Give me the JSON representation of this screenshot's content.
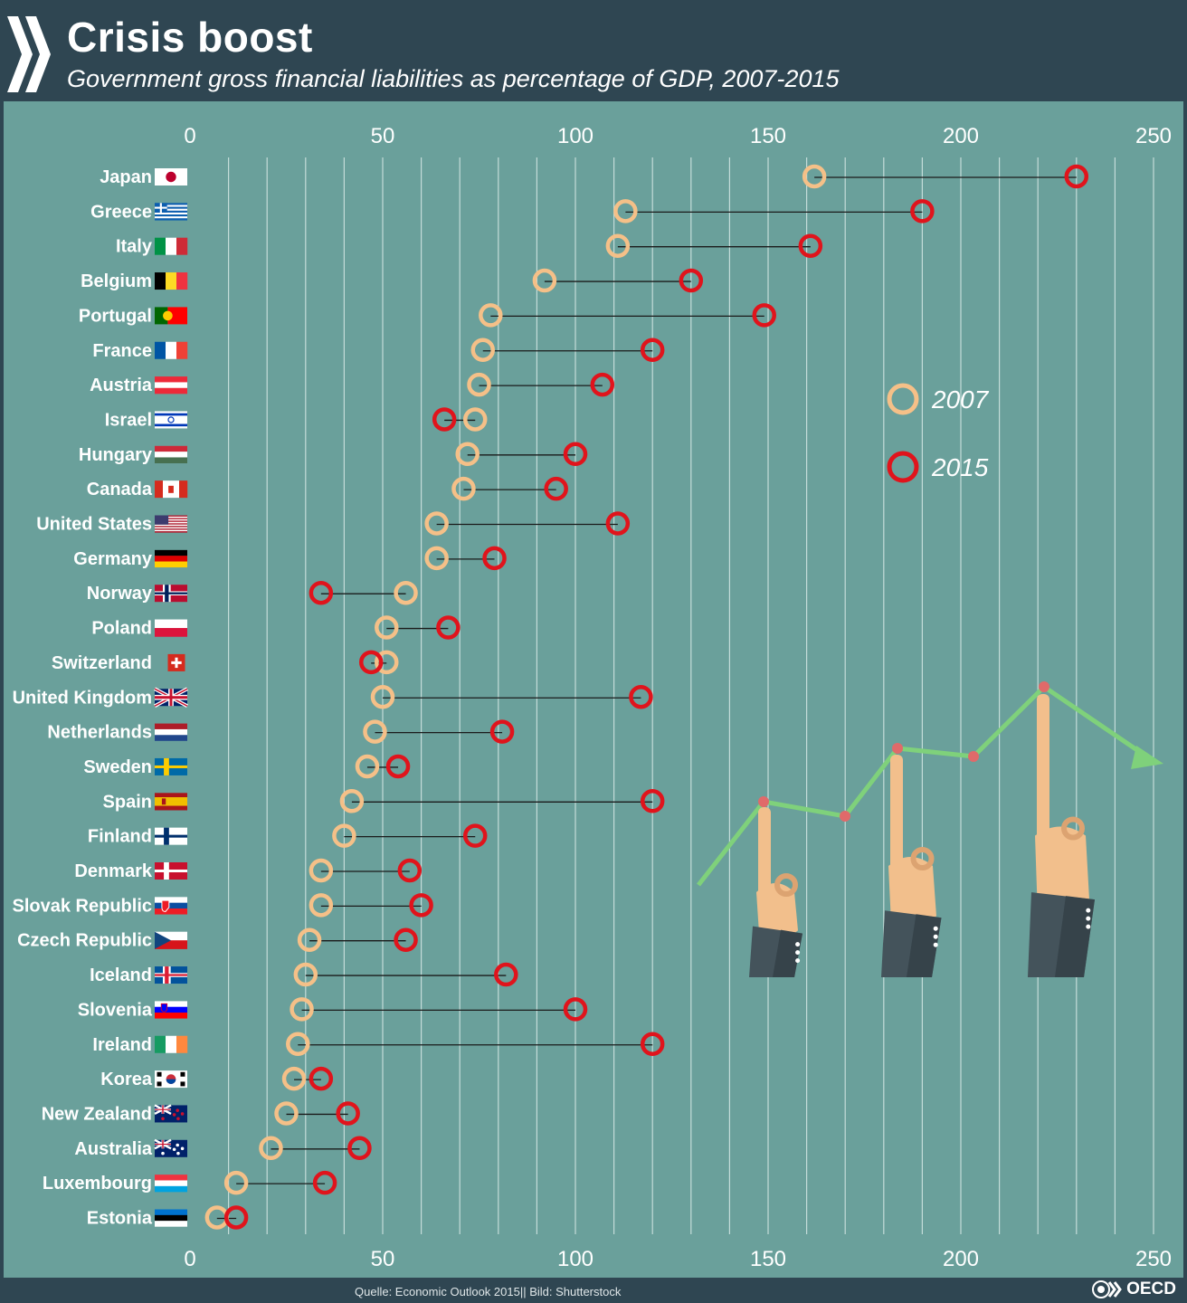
{
  "header": {
    "title": "Crisis boost",
    "subtitle": "Government gross financial liabilities as percentage of GDP, 2007-2015"
  },
  "footer": {
    "source": "Quelle: Economic Outlook 2015|| Bild: Shutterstock",
    "brand": "OECD"
  },
  "colors": {
    "background": "#6aa09b",
    "header": "#2f4652",
    "marker_2007": "#f5c088",
    "marker_2015": "#e0141c",
    "connector": "#1b1b1b",
    "illustration_line": "#7fd17b"
  },
  "chart_data": {
    "type": "dumbbell",
    "title": "Crisis boost",
    "subtitle": "Government gross financial liabilities as percentage of GDP, 2007-2015",
    "xlabel": "",
    "ylabel": "",
    "xlim": [
      0,
      250
    ],
    "ticks": [
      0,
      50,
      100,
      150,
      200,
      250
    ],
    "top_tick_labels": [
      "0",
      "50",
      "100",
      "150",
      "200",
      "250"
    ],
    "bottom_tick_labels": [
      "0",
      "50",
      "100",
      "150",
      "200",
      "250"
    ],
    "legend": [
      {
        "label": "2007",
        "series": "y2007"
      },
      {
        "label": "2015",
        "series": "y2015"
      }
    ],
    "legend_position": "right",
    "countries": [
      "Japan",
      "Greece",
      "Italy",
      "Belgium",
      "Portugal",
      "France",
      "Austria",
      "Israel",
      "Hungary",
      "Canada",
      "United States",
      "Germany",
      "Norway",
      "Poland",
      "Switzerland",
      "United Kingdom",
      "Netherlands",
      "Sweden",
      "Spain",
      "Finland",
      "Denmark",
      "Slovak Republic",
      "Czech Republic",
      "Iceland",
      "Slovenia",
      "Ireland",
      "Korea",
      "New Zealand",
      "Australia",
      "Luxembourg",
      "Estonia"
    ],
    "series": [
      {
        "name": "2007",
        "key": "y2007",
        "values": [
          162,
          113,
          111,
          92,
          78,
          76,
          75,
          74,
          72,
          71,
          64,
          64,
          56,
          51,
          51,
          50,
          48,
          46,
          42,
          40,
          34,
          34,
          31,
          30,
          29,
          28,
          27,
          25,
          21,
          12,
          7
        ]
      },
      {
        "name": "2015",
        "key": "y2015",
        "values": [
          230,
          190,
          161,
          130,
          149,
          120,
          107,
          66,
          100,
          95,
          111,
          79,
          34,
          67,
          47,
          117,
          81,
          54,
          120,
          74,
          57,
          60,
          56,
          82,
          100,
          120,
          34,
          41,
          44,
          35,
          12
        ]
      }
    ]
  }
}
